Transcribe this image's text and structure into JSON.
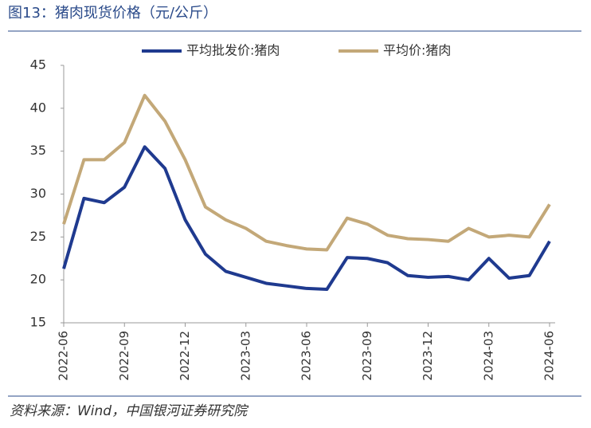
{
  "chart_data": {
    "type": "line",
    "title": "图13：猪肉现货价格（元/公斤）",
    "source": "资料来源：Wind，中国银河证券研究院",
    "x": [
      "2022-06",
      "2022-07",
      "2022-08",
      "2022-09",
      "2022-10",
      "2022-11",
      "2022-12",
      "2023-01",
      "2023-02",
      "2023-03",
      "2023-04",
      "2023-05",
      "2023-06",
      "2023-07",
      "2023-08",
      "2023-09",
      "2023-10",
      "2023-11",
      "2023-12",
      "2024-01",
      "2024-02",
      "2024-03",
      "2024-04",
      "2024-05",
      "2024-06"
    ],
    "xticks": [
      "2022-06",
      "2022-09",
      "2022-12",
      "2023-03",
      "2023-06",
      "2023-09",
      "2023-12",
      "2024-03",
      "2024-06"
    ],
    "series": [
      {
        "name": "平均批发价:猪肉",
        "color": "#1f3a8f",
        "values": [
          21.3,
          29.5,
          29,
          30.8,
          35.5,
          33,
          27,
          23,
          21,
          20.3,
          19.6,
          19.3,
          19,
          18.9,
          22.6,
          22.5,
          22,
          20.5,
          20.3,
          20.4,
          20,
          22.5,
          20.2,
          20.5,
          24.5
        ]
      },
      {
        "name": "平均价:猪肉",
        "color": "#c3a878",
        "values": [
          26.5,
          34,
          34,
          36,
          41.5,
          38.5,
          34,
          28.5,
          27,
          26,
          24.5,
          24,
          23.6,
          23.5,
          27.2,
          26.5,
          25.2,
          24.8,
          24.7,
          24.5,
          26,
          25,
          25.2,
          25,
          28.8
        ]
      }
    ],
    "ylim": [
      15,
      45
    ],
    "yticks": [
      15,
      20,
      25,
      30,
      35,
      40,
      45
    ]
  }
}
